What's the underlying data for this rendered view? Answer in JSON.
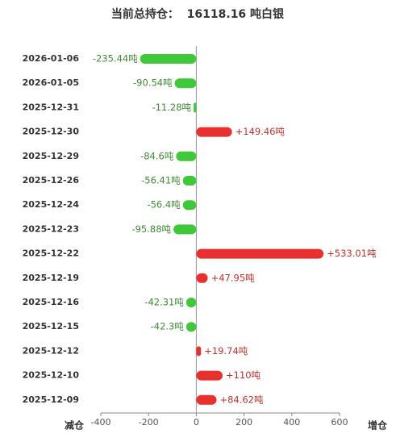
{
  "chart_data": {
    "type": "bar",
    "orientation": "horizontal",
    "title": "当前总持仓：  16118.16 吨白银",
    "categories": [
      "2026-01-06",
      "2026-01-05",
      "2025-12-31",
      "2025-12-30",
      "2025-12-29",
      "2025-12-26",
      "2025-12-24",
      "2025-12-23",
      "2025-12-22",
      "2025-12-19",
      "2025-12-16",
      "2025-12-15",
      "2025-12-12",
      "2025-12-10",
      "2025-12-09"
    ],
    "values": [
      -235.44,
      -90.54,
      -11.28,
      149.46,
      -84.6,
      -56.41,
      -56.4,
      -95.88,
      533.01,
      47.95,
      -42.31,
      -42.3,
      19.74,
      110,
      84.62
    ],
    "value_labels": [
      "-235.44吨",
      "-90.54吨",
      "-11.28吨",
      "+149.46吨",
      "-84.6吨",
      "-56.41吨",
      "-56.4吨",
      "-95.88吨",
      "+533.01吨",
      "+47.95吨",
      "-42.31吨",
      "-42.3吨",
      "+19.74吨",
      "+110吨",
      "+84.62吨"
    ],
    "positive_color": "#e8302f",
    "negative_color": "#3ec83a",
    "positive_label_color": "#c4302b",
    "negative_label_color": "#3f8a35",
    "xlim": [
      -400,
      600
    ],
    "xticks": [
      -400,
      -200,
      0,
      200,
      400,
      600
    ],
    "x_label_left": "减仓",
    "x_label_right": "增仓"
  }
}
